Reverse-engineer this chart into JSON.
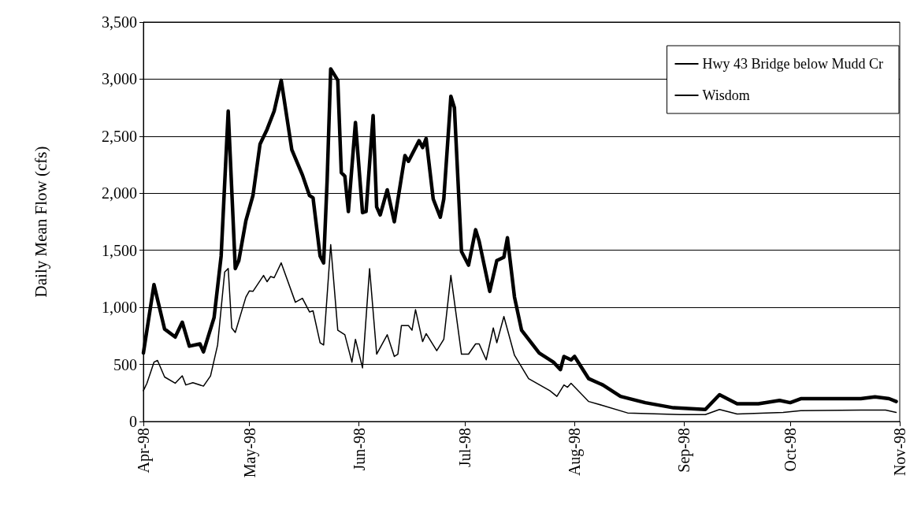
{
  "chart_data": {
    "type": "line",
    "ylabel": "Daily Mean Flow (cfs)",
    "xlim": [
      "1998-04-01",
      "1998-11-01"
    ],
    "xticks": [
      {
        "value": "1998-04-01",
        "label": "Apr-98"
      },
      {
        "value": "1998-05-01",
        "label": "May-98"
      },
      {
        "value": "1998-06-01",
        "label": "Jun-98"
      },
      {
        "value": "1998-07-01",
        "label": "Jul-98"
      },
      {
        "value": "1998-08-01",
        "label": "Aug-98"
      },
      {
        "value": "1998-09-01",
        "label": "Sep-98"
      },
      {
        "value": "1998-10-01",
        "label": "Oct-98"
      },
      {
        "value": "1998-11-01",
        "label": "Nov-98"
      }
    ],
    "ylim": [
      0,
      3500
    ],
    "yticks": [
      0,
      500,
      {
        "value": 1000,
        "label": "1,000"
      },
      {
        "value": 1500,
        "label": "1,500"
      },
      {
        "value": 2000,
        "label": "2,000"
      },
      {
        "value": 2500,
        "label": "2,500"
      },
      {
        "value": 3000,
        "label": "3,000"
      },
      {
        "value": 3500,
        "label": "3,500"
      }
    ],
    "grid": "y",
    "legend": "top right",
    "marker": "none",
    "line_style": "solid",
    "series": [
      {
        "name": "Hwy 43 Bridge below Mudd Cr",
        "color": "#000000",
        "x": [
          "1998-04-01",
          "1998-04-04",
          "1998-04-07",
          "1998-04-10",
          "1998-04-12",
          "1998-04-14",
          "1998-04-17",
          "1998-04-18",
          "1998-04-21",
          "1998-04-23",
          "1998-04-25",
          "1998-04-27",
          "1998-04-28",
          "1998-04-30",
          "1998-05-02",
          "1998-05-04",
          "1998-05-06",
          "1998-05-08",
          "1998-05-10",
          "1998-05-13",
          "1998-05-16",
          "1998-05-18",
          "1998-05-19",
          "1998-05-21",
          "1998-05-22",
          "1998-05-23",
          "1998-05-24",
          "1998-05-26",
          "1998-05-27",
          "1998-05-28",
          "1998-05-29",
          "1998-05-31",
          "1998-06-02",
          "1998-06-03",
          "1998-06-05",
          "1998-06-06",
          "1998-06-07",
          "1998-06-09",
          "1998-06-11",
          "1998-06-14",
          "1998-06-15",
          "1998-06-18",
          "1998-06-19",
          "1998-06-20",
          "1998-06-22",
          "1998-06-24",
          "1998-06-25",
          "1998-06-27",
          "1998-06-28",
          "1998-06-30",
          "1998-07-02",
          "1998-07-04",
          "1998-07-05",
          "1998-07-08",
          "1998-07-10",
          "1998-07-12",
          "1998-07-13",
          "1998-07-15",
          "1998-07-17",
          "1998-07-22",
          "1998-07-26",
          "1998-07-28",
          "1998-07-29",
          "1998-07-31",
          "1998-08-01",
          "1998-08-05",
          "1998-08-09",
          "1998-08-14",
          "1998-08-21",
          "1998-08-29",
          "1998-09-07",
          "1998-09-11",
          "1998-09-16",
          "1998-09-22",
          "1998-09-28",
          "1998-10-01",
          "1998-10-04",
          "1998-10-14",
          "1998-10-21",
          "1998-10-25",
          "1998-10-29",
          "1998-10-31"
        ],
        "values": [
          600,
          1200,
          810,
          740,
          870,
          660,
          680,
          610,
          910,
          1450,
          2720,
          1340,
          1410,
          1760,
          1980,
          2430,
          2560,
          2720,
          2990,
          2380,
          2160,
          1980,
          1960,
          1450,
          1390,
          2120,
          3090,
          2990,
          2180,
          2150,
          1840,
          2620,
          1830,
          1840,
          2680,
          1880,
          1810,
          2030,
          1750,
          2330,
          2280,
          2460,
          2400,
          2480,
          1950,
          1790,
          1950,
          2850,
          2750,
          1490,
          1370,
          1680,
          1580,
          1140,
          1410,
          1440,
          1610,
          1090,
          800,
          600,
          520,
          455,
          570,
          540,
          570,
          375,
          320,
          220,
          165,
          120,
          105,
          235,
          155,
          155,
          185,
          165,
          200,
          200,
          200,
          215,
          200,
          175
        ]
      },
      {
        "name": "Wisdom",
        "color": "#000000",
        "x": [
          "1998-04-01",
          "1998-04-02",
          "1998-04-04",
          "1998-04-05",
          "1998-04-07",
          "1998-04-10",
          "1998-04-12",
          "1998-04-13",
          "1998-04-15",
          "1998-04-18",
          "1998-04-20",
          "1998-04-22",
          "1998-04-24",
          "1998-04-25",
          "1998-04-26",
          "1998-04-27",
          "1998-04-30",
          "1998-05-01",
          "1998-05-02",
          "1998-05-05",
          "1998-05-06",
          "1998-05-07",
          "1998-05-08",
          "1998-05-10",
          "1998-05-14",
          "1998-05-16",
          "1998-05-18",
          "1998-05-19",
          "1998-05-21",
          "1998-05-22",
          "1998-05-24",
          "1998-05-26",
          "1998-05-28",
          "1998-05-30",
          "1998-05-31",
          "1998-06-02",
          "1998-06-04",
          "1998-06-06",
          "1998-06-09",
          "1998-06-11",
          "1998-06-12",
          "1998-06-13",
          "1998-06-15",
          "1998-06-16",
          "1998-06-17",
          "1998-06-19",
          "1998-06-20",
          "1998-06-23",
          "1998-06-25",
          "1998-06-27",
          "1998-06-30",
          "1998-07-02",
          "1998-07-04",
          "1998-07-05",
          "1998-07-07",
          "1998-07-09",
          "1998-07-10",
          "1998-07-12",
          "1998-07-15",
          "1998-07-19",
          "1998-07-25",
          "1998-07-27",
          "1998-07-29",
          "1998-07-30",
          "1998-07-31",
          "1998-08-05",
          "1998-08-09",
          "1998-08-16",
          "1998-08-31",
          "1998-09-07",
          "1998-09-11",
          "1998-09-16",
          "1998-09-29",
          "1998-10-04",
          "1998-10-21",
          "1998-10-28",
          "1998-10-31"
        ],
        "values": [
          270,
          335,
          520,
          535,
          390,
          335,
          400,
          320,
          340,
          310,
          400,
          670,
          1310,
          1340,
          820,
          780,
          1090,
          1145,
          1140,
          1280,
          1225,
          1270,
          1260,
          1390,
          1045,
          1080,
          960,
          970,
          690,
          670,
          1550,
          800,
          760,
          520,
          720,
          470,
          1340,
          590,
          760,
          570,
          590,
          840,
          840,
          800,
          980,
          700,
          770,
          620,
          720,
          1280,
          590,
          590,
          680,
          680,
          540,
          820,
          690,
          920,
          580,
          375,
          270,
          220,
          320,
          300,
          335,
          175,
          140,
          75,
          60,
          60,
          105,
          65,
          80,
          95,
          100,
          100,
          80
        ]
      }
    ]
  }
}
